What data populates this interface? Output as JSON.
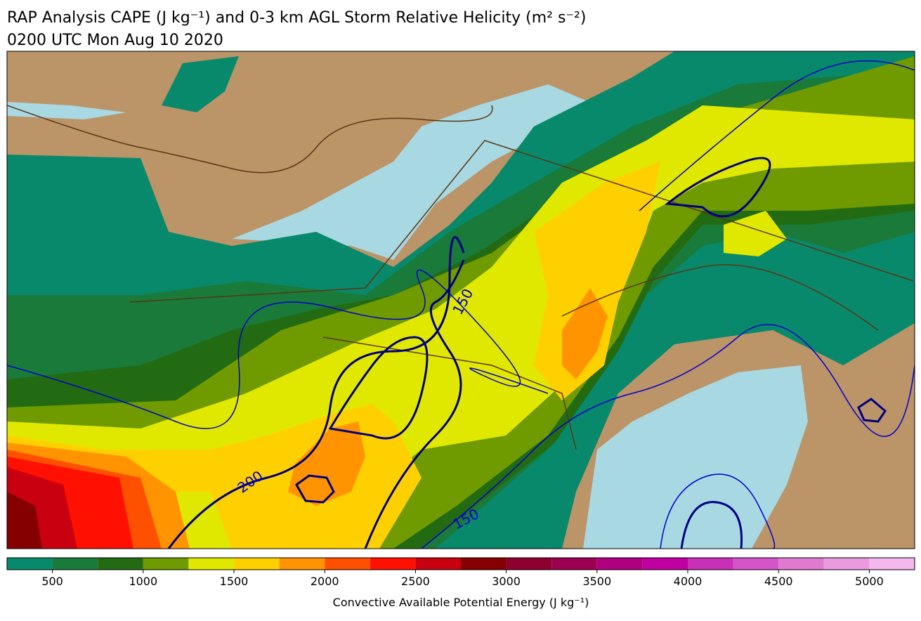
{
  "title": "RAP Analysis CAPE (J kg⁻¹) and 0-3 km AGL Storm Relative Helicity (m² s⁻²)",
  "subtitle": "0200 UTC Mon Aug 10 2020",
  "contour_labels": [
    "200",
    "150",
    "150"
  ],
  "colorbar": {
    "label": "Convective Available Potential Energy (J kg⁻¹)",
    "bounds": [
      250,
      500,
      750,
      1000,
      1250,
      1500,
      1750,
      2000,
      2250,
      2500,
      2750,
      3000,
      3250,
      3500,
      3750,
      4000,
      4250,
      4500,
      4750,
      5000,
      5250
    ],
    "colors": [
      "#08896b",
      "#1a7a3a",
      "#236b12",
      "#6f9a00",
      "#e1e800",
      "#ffd000",
      "#ff9400",
      "#ff5000",
      "#ff1000",
      "#c90010",
      "#850000",
      "#8d0030",
      "#9c0050",
      "#b00080",
      "#c000a0",
      "#c830b8",
      "#d455c8",
      "#e07ad0",
      "#ea9ade",
      "#f4b8ec"
    ],
    "ticks": [
      500,
      1000,
      1500,
      2000,
      2500,
      3000,
      3500,
      4000,
      4500,
      5000
    ]
  }
}
